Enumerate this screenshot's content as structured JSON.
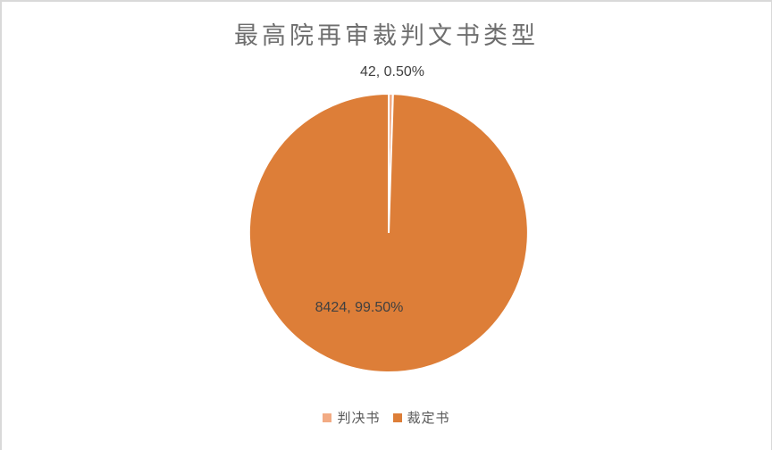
{
  "chart_data": {
    "type": "pie",
    "title": "最高院再审裁判文书类型",
    "categories": [
      "判决书",
      "裁定书"
    ],
    "values": [
      42,
      8424
    ],
    "percentages": [
      0.5,
      99.5
    ],
    "colors": [
      "#F2AB84",
      "#DD7E38"
    ],
    "data_labels": [
      "42, 0.50%",
      "8424, 99.50%"
    ],
    "legend_position": "bottom",
    "start_angle_deg": 0,
    "direction": "clockwise",
    "slice_border_color": "#ffffff"
  },
  "labels": {
    "small_slice": "42, 0.50%",
    "large_slice": "8424, 99.50%"
  },
  "legend": {
    "items": [
      {
        "label": "判决书",
        "color": "#F2AB84"
      },
      {
        "label": "裁定书",
        "color": "#DD7E38"
      }
    ]
  }
}
